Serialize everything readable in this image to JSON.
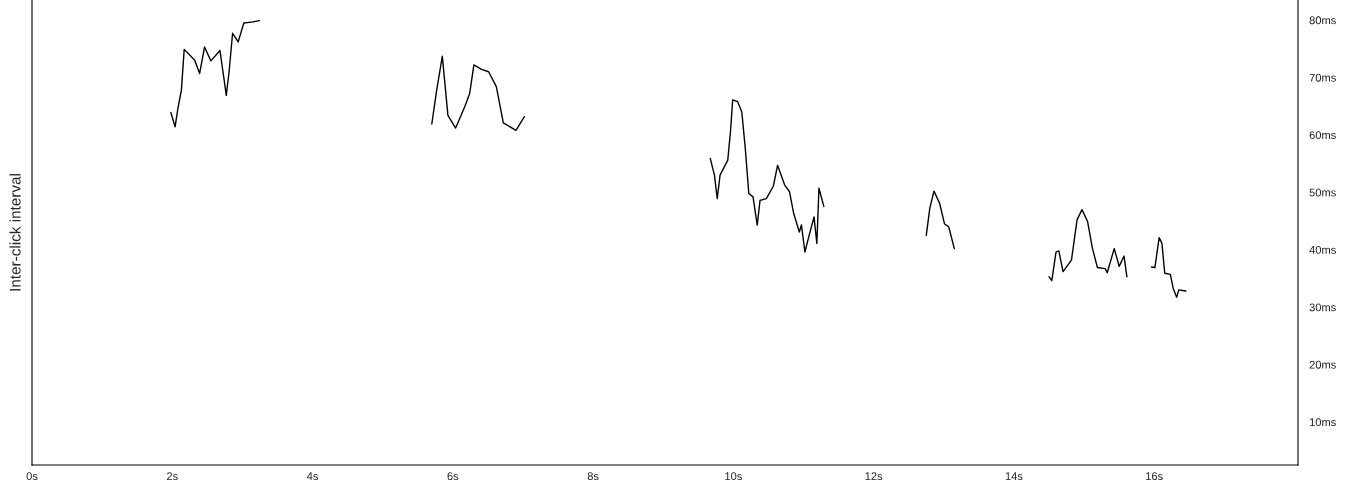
{
  "chart_data": {
    "type": "line",
    "ylabel": "Inter-click interval",
    "xlim": [
      0,
      18.05
    ],
    "ylim": [
      2.5,
      83.5
    ],
    "xticks": [
      {
        "value": 0,
        "label": "0s"
      },
      {
        "value": 2,
        "label": "2s"
      },
      {
        "value": 4,
        "label": "4s"
      },
      {
        "value": 6,
        "label": "6s"
      },
      {
        "value": 8,
        "label": "8s"
      },
      {
        "value": 10,
        "label": "10s"
      },
      {
        "value": 12,
        "label": "12s"
      },
      {
        "value": 14,
        "label": "14s"
      },
      {
        "value": 16,
        "label": "16s"
      }
    ],
    "yticks": [
      {
        "value": 10,
        "label": "10ms"
      },
      {
        "value": 20,
        "label": "20ms"
      },
      {
        "value": 30,
        "label": "30ms"
      },
      {
        "value": 40,
        "label": "40ms"
      },
      {
        "value": 50,
        "label": "50ms"
      },
      {
        "value": 60,
        "label": "60ms"
      },
      {
        "value": 70,
        "label": "70ms"
      },
      {
        "value": 80,
        "label": "80ms"
      }
    ],
    "grid": false,
    "legend": false,
    "marker": "none",
    "line_style": "solid",
    "series": [
      {
        "color": "#000000",
        "x": [
          1.98,
          2.04,
          2.08,
          2.13,
          2.17,
          2.32,
          2.39,
          2.46,
          2.55,
          2.68,
          2.77,
          2.81,
          2.86,
          2.94,
          3.02,
          3.15,
          3.24
        ],
        "values": [
          63.9,
          61.4,
          64.6,
          67.8,
          74.9,
          73.0,
          70.7,
          75.3,
          72.9,
          74.7,
          66.9,
          71.0,
          77.7,
          76.2,
          79.5,
          79.7,
          79.9
        ]
      },
      {
        "color": "#000000",
        "x": [
          5.7,
          5.77,
          5.85,
          5.93,
          6.04,
          6.17,
          6.24,
          6.3,
          6.41,
          6.51,
          6.62,
          6.72,
          6.9,
          7.02
        ],
        "values": [
          61.9,
          67.8,
          73.7,
          63.4,
          61.2,
          64.9,
          67.2,
          72.2,
          71.4,
          71.0,
          68.4,
          62.1,
          60.8,
          63.2
        ]
      },
      {
        "color": "#000000",
        "x": [
          9.67,
          9.73,
          9.77,
          9.81,
          9.92,
          9.96,
          9.99,
          10.06,
          10.12,
          10.17,
          10.22,
          10.28,
          10.34,
          10.38,
          10.47,
          10.57,
          10.63,
          10.73,
          10.8,
          10.86,
          10.94,
          10.97,
          11.02,
          11.08,
          11.15,
          11.19,
          11.22,
          11.26,
          11.29
        ],
        "values": [
          55.9,
          53.0,
          48.9,
          53.0,
          55.6,
          60.8,
          66.1,
          65.8,
          64.0,
          57.6,
          49.8,
          49.2,
          44.3,
          48.6,
          48.9,
          51.1,
          54.7,
          51.3,
          50.1,
          46.3,
          43.1,
          44.3,
          39.6,
          42.5,
          45.7,
          41.1,
          50.7,
          48.9,
          47.5
        ]
      },
      {
        "color": "#000000",
        "x": [
          12.75,
          12.8,
          12.86,
          12.94,
          13.01,
          13.07,
          13.15
        ],
        "values": [
          42.5,
          47.2,
          50.2,
          48.1,
          44.5,
          44.0,
          40.2
        ]
      },
      {
        "color": "#000000",
        "x": [
          14.5,
          14.54,
          14.6,
          14.64,
          14.7,
          14.82,
          14.9,
          14.97,
          15.05,
          15.12,
          15.19,
          15.3,
          15.33,
          15.43,
          15.5,
          15.57,
          15.61
        ],
        "values": [
          35.3,
          34.6,
          39.6,
          39.8,
          36.2,
          38.2,
          45.2,
          47.0,
          44.9,
          40.2,
          36.9,
          36.7,
          36.0,
          40.2,
          37.1,
          38.9,
          35.3
        ]
      },
      {
        "color": "#000000",
        "x": [
          15.96,
          16.01,
          16.07,
          16.11,
          16.15,
          16.23,
          16.27,
          16.32,
          16.35,
          16.45
        ],
        "values": [
          37.0,
          36.9,
          42.1,
          41.1,
          35.9,
          35.7,
          33.3,
          31.7,
          33.0,
          32.8
        ]
      }
    ]
  }
}
